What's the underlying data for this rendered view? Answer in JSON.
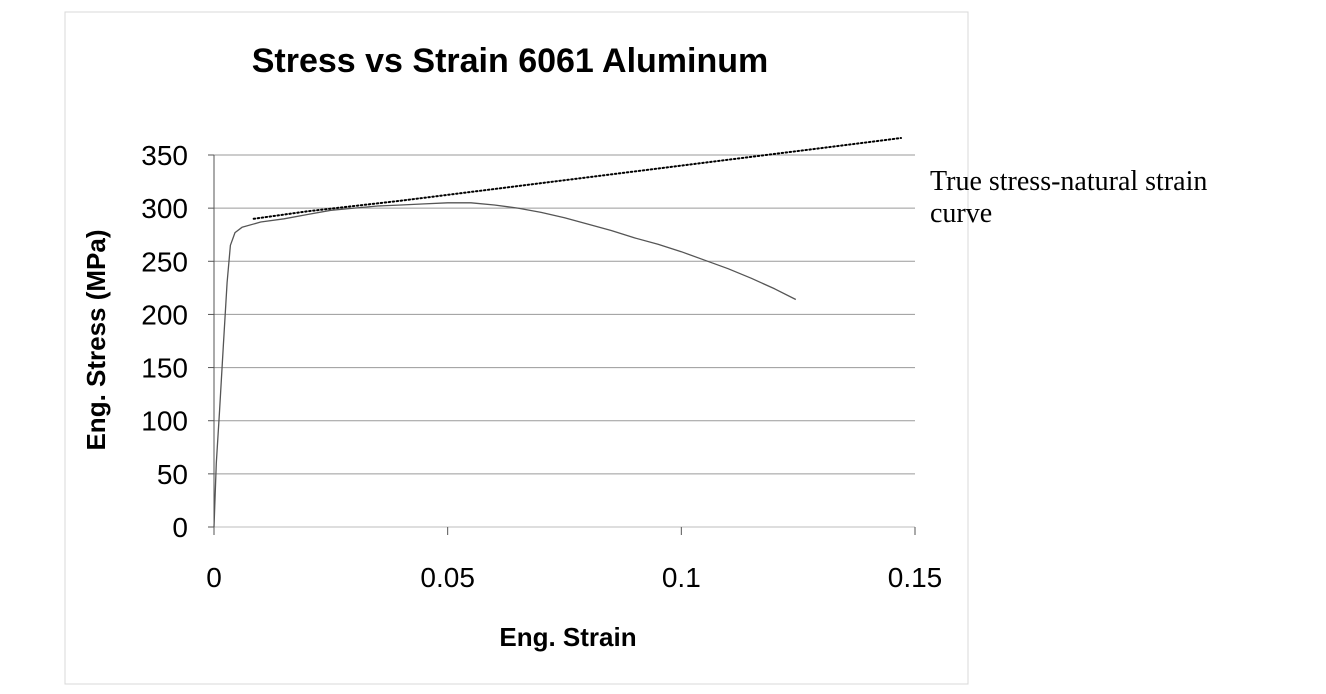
{
  "chart_data": {
    "type": "line",
    "title": "Stress vs Strain 6061 Aluminum",
    "xlabel": "Eng. Strain",
    "ylabel": "Eng. Stress (MPa)",
    "xlim": [
      0,
      0.15
    ],
    "ylim": [
      0,
      350
    ],
    "xticks": [
      0,
      0.05,
      0.1,
      0.15
    ],
    "xtick_labels": [
      "0",
      "0.05",
      "0.1",
      "0.15"
    ],
    "yticks": [
      0,
      50,
      100,
      150,
      200,
      250,
      300,
      350
    ],
    "ytick_labels": [
      "0",
      "50",
      "100",
      "150",
      "200",
      "250",
      "300",
      "350"
    ],
    "grid": "horizontal",
    "legend": "none",
    "annotations": [
      {
        "text_lines": [
          "True stress-natural strain",
          "curve"
        ],
        "refers_to": "dotted series"
      }
    ],
    "series": [
      {
        "style": "solid",
        "color": "#555555",
        "x": [
          0,
          0.0005,
          0.0012,
          0.002,
          0.0028,
          0.0035,
          0.0045,
          0.006,
          0.01,
          0.015,
          0.02,
          0.025,
          0.03,
          0.035,
          0.04,
          0.045,
          0.05,
          0.055,
          0.06,
          0.065,
          0.07,
          0.075,
          0.08,
          0.085,
          0.09,
          0.095,
          0.1,
          0.105,
          0.11,
          0.115,
          0.12,
          0.1245
        ],
        "y": [
          0,
          60,
          110,
          170,
          230,
          265,
          277,
          282,
          287,
          290,
          294,
          298,
          300,
          302,
          303,
          304,
          305,
          305,
          303,
          300,
          296,
          291,
          285,
          279,
          272,
          266,
          259,
          251,
          243,
          234,
          224,
          214
        ]
      },
      {
        "style": "dotted",
        "color": "#000000",
        "x": [
          0.0085,
          0.02,
          0.04,
          0.06,
          0.08,
          0.1,
          0.12,
          0.14,
          0.147
        ],
        "y": [
          290,
          297,
          307,
          318,
          329,
          340,
          351,
          362,
          366
        ]
      }
    ]
  }
}
